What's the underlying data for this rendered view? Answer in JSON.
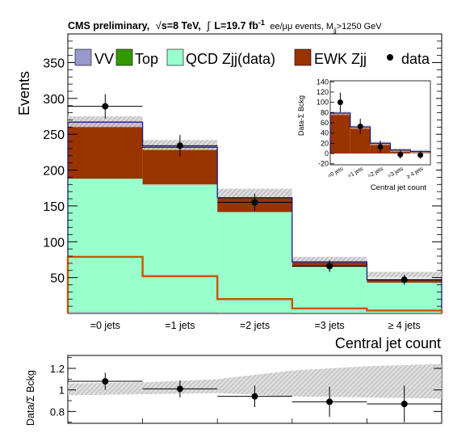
{
  "header": {
    "lead": "CMS preliminary,",
    "sqrt": "√",
    "energy": "s=8 TeV,",
    "lumi_sym": "∫",
    "lumi": "L=19.7 fb",
    "lumi_exp": "-1",
    "channel": "ee/μμ events, M",
    "mass_sub": "jj",
    "mass_cut": ">1250 GeV"
  },
  "colors": {
    "VV": "#9999cc",
    "Top": "#339900",
    "QCD": "#99ffcc",
    "EWK": "#993300",
    "EWK_line": "#cc5500",
    "sum_line": "#1a1a80",
    "band": "#b4b4b4"
  },
  "chart_data": [
    {
      "type": "bar",
      "stacked": true,
      "ylabel": "Events",
      "xlabel": "Central jet count",
      "categories": [
        "=0 jets",
        "=1 jets",
        "=2 jets",
        "=3 jets",
        "≥ 4 jets"
      ],
      "ylim": [
        0,
        390
      ],
      "yticks": [
        50,
        100,
        150,
        200,
        250,
        300,
        350
      ],
      "series": [
        {
          "name": "VV",
          "values": [
            1.5,
            1.5,
            1,
            0.5,
            0.5
          ]
        },
        {
          "name": "Top",
          "values": [
            0.5,
            0.5,
            0.5,
            0.5,
            0.5
          ]
        },
        {
          "name": "QCD Zjj(data)",
          "values": [
            186,
            178,
            140,
            64,
            42
          ]
        },
        {
          "name": "EWK Zjj",
          "values": [
            79,
            52,
            20,
            7,
            4
          ]
        }
      ],
      "ewk_only": [
        79,
        52,
        20,
        7,
        4
      ],
      "uncertainty": [
        [
          260,
          275
        ],
        [
          228,
          242
        ],
        [
          162,
          174
        ],
        [
          71,
          79
        ],
        [
          50,
          58
        ]
      ],
      "data": [
        {
          "name": "data",
          "y": 289,
          "yerr": 17,
          "xerr": 0.5
        },
        {
          "name": "data",
          "y": 234,
          "yerr": 15,
          "xerr": 0.5
        },
        {
          "name": "data",
          "y": 155,
          "yerr": 12,
          "xerr": 0.5
        },
        {
          "name": "data",
          "y": 66,
          "yerr": 8,
          "xerr": 0.5
        },
        {
          "name": "data",
          "y": 47,
          "yerr": 7,
          "xerr": 0.5
        }
      ],
      "legend": [
        "VV",
        "Top",
        "QCD Zjj(data)",
        "EWK Zjj",
        "data"
      ],
      "legend_placement": "top",
      "grid": false
    },
    {
      "type": "bar",
      "inset": true,
      "ylabel": "Data-Σ Bckg",
      "xlabel": "Central jet count",
      "categories": [
        "=0 jets",
        "=1 jets",
        "=2 jets",
        "=3 jets",
        "≥ 4 jets"
      ],
      "ylim": [
        -22,
        142
      ],
      "yticks": [
        -20,
        0,
        20,
        40,
        60,
        80,
        100,
        120,
        140
      ],
      "values": [
        79,
        52,
        20,
        7,
        4
      ],
      "data": [
        {
          "y": 100,
          "yerr": 19
        },
        {
          "y": 53,
          "yerr": 15
        },
        {
          "y": 13,
          "yerr": 12
        },
        {
          "y": -2,
          "yerr": 8
        },
        {
          "y": -3,
          "yerr": 7
        }
      ]
    },
    {
      "type": "scatter",
      "ratio": true,
      "ylabel": "Data/Σ Bckg",
      "ylim": [
        0.69,
        1.32
      ],
      "yticks": [
        0.8,
        1,
        1.2
      ],
      "values": [
        1.08,
        1.01,
        0.94,
        0.89,
        0.87
      ],
      "yerr": [
        0.08,
        0.08,
        0.1,
        0.14,
        0.17
      ],
      "band_x": [
        0,
        1,
        2,
        3,
        4,
        5
      ],
      "band_lo": [
        0.95,
        0.96,
        0.97,
        0.94,
        0.93,
        0.92
      ],
      "band_hi": [
        1.06,
        1.07,
        1.1,
        1.18,
        1.22,
        1.24
      ]
    }
  ]
}
